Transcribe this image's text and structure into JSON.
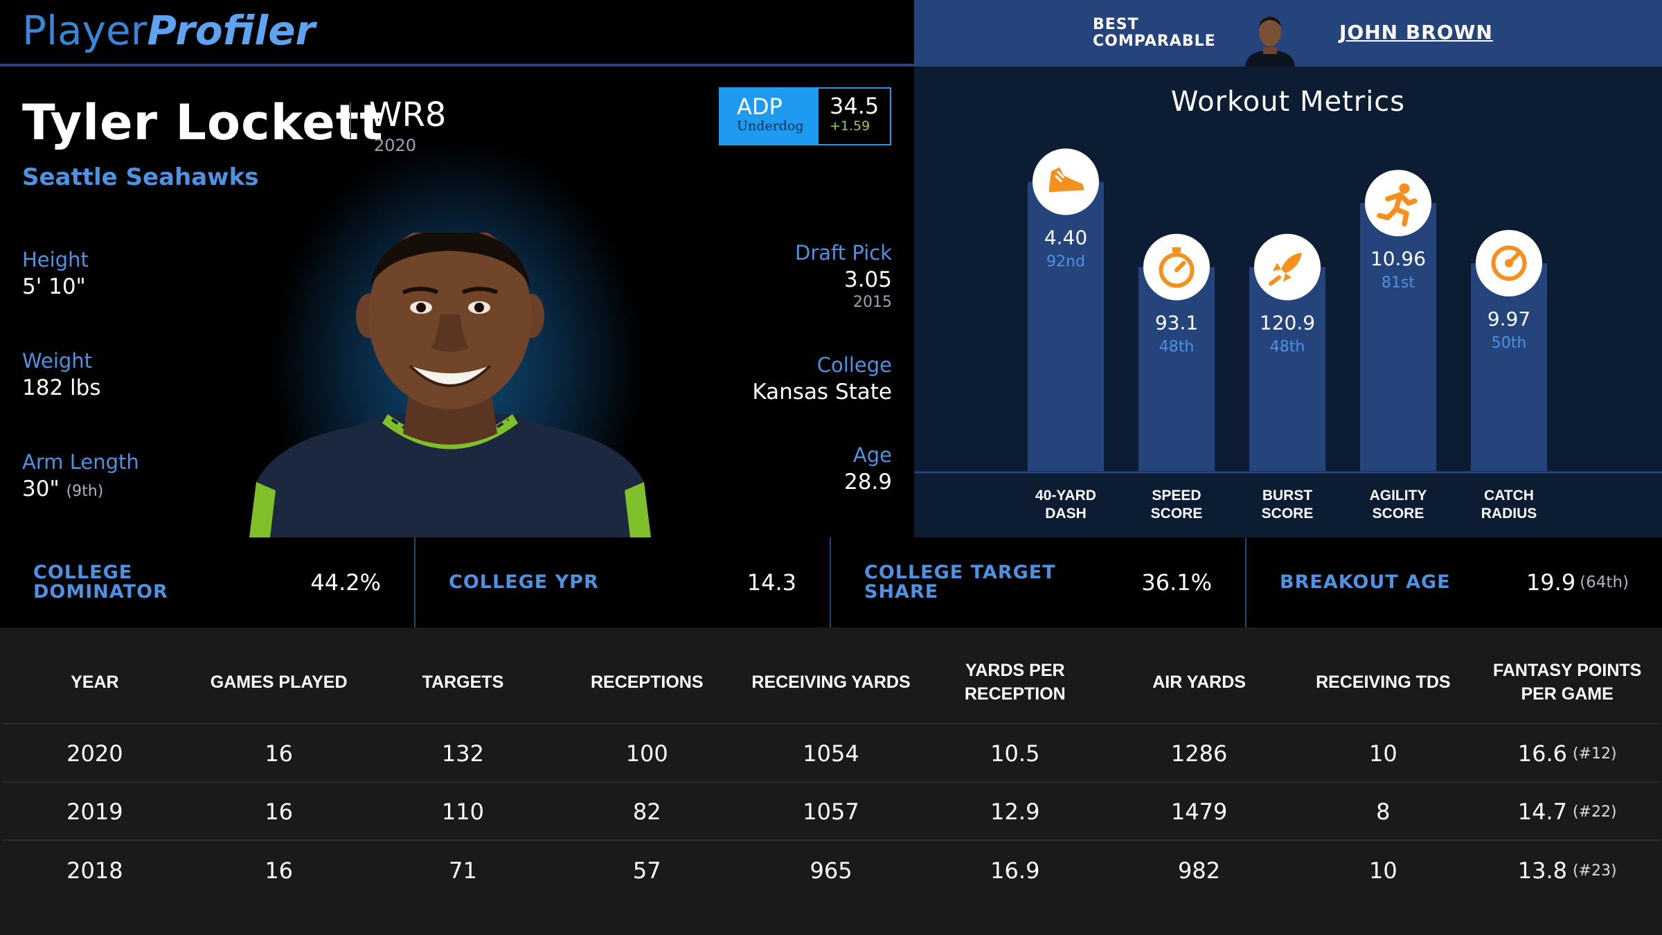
{
  "header": {
    "logo_part1": "Player",
    "logo_part2": "Profiler",
    "best_comparable_label_line1": "BEST",
    "best_comparable_label_line2": "COMPARABLE",
    "best_comparable_name": "JOHN BROWN"
  },
  "player": {
    "name": "Tyler Lockett",
    "position_rank": "WR8",
    "season": "2020",
    "team": "Seattle Seahawks",
    "height_label": "Height",
    "height": "5' 10\"",
    "weight_label": "Weight",
    "weight": "182 lbs",
    "arm_label": "Arm Length",
    "arm": "30\"",
    "arm_rank": "(9th)",
    "draft_label": "Draft Pick",
    "draft_pick": "3.05",
    "draft_year": "2015",
    "college_label": "College",
    "college": "Kansas State",
    "age_label": "Age",
    "age": "28.9"
  },
  "adp": {
    "label": "ADP",
    "site": "Underdog",
    "value": "34.5",
    "change": "+1.59"
  },
  "workout": {
    "title": "Workout Metrics",
    "colors": {
      "bar": "#25447c",
      "icon_bg": "#ffffff",
      "icon": "#f5901e",
      "value": "#ffffff",
      "pct": "#4e92e2"
    },
    "metrics": [
      {
        "label_line1": "40-YARD",
        "label_line2": "DASH",
        "value": "4.40",
        "percentile": "92nd",
        "pct_value": 92,
        "icon": "shoe-icon"
      },
      {
        "label_line1": "SPEED",
        "label_line2": "SCORE",
        "value": "93.1",
        "percentile": "48th",
        "pct_value": 48,
        "icon": "stopwatch-icon"
      },
      {
        "label_line1": "BURST",
        "label_line2": "SCORE",
        "value": "120.9",
        "percentile": "48th",
        "pct_value": 48,
        "icon": "rocket-icon"
      },
      {
        "label_line1": "AGILITY",
        "label_line2": "SCORE",
        "value": "10.96",
        "percentile": "81st",
        "pct_value": 81,
        "icon": "runner-icon"
      },
      {
        "label_line1": "CATCH",
        "label_line2": "RADIUS",
        "value": "9.97",
        "percentile": "50th",
        "pct_value": 50,
        "icon": "target-icon"
      }
    ]
  },
  "college_metrics": [
    {
      "label": "COLLEGE DOMINATOR",
      "value": "44.2%",
      "sub": ""
    },
    {
      "label": "COLLEGE YPR",
      "value": "14.3",
      "sub": ""
    },
    {
      "label": "COLLEGE TARGET SHARE",
      "value": "36.1%",
      "sub": ""
    },
    {
      "label": "BREAKOUT AGE",
      "value": "19.9",
      "sub": "(64th)"
    }
  ],
  "stats_table": {
    "headers": [
      "YEAR",
      "GAMES PLAYED",
      "TARGETS",
      "RECEPTIONS",
      "RECEIVING YARDS",
      "YARDS PER RECEPTION",
      "AIR YARDS",
      "RECEIVING TDS",
      "FANTASY POINTS PER GAME"
    ],
    "rows": [
      {
        "year": "2020",
        "games": "16",
        "targets": "132",
        "receptions": "100",
        "rec_yards": "1054",
        "ypr": "10.5",
        "air_yards": "1286",
        "tds": "10",
        "fppg": "16.6",
        "fppg_rank": "(#12)"
      },
      {
        "year": "2019",
        "games": "16",
        "targets": "110",
        "receptions": "82",
        "rec_yards": "1057",
        "ypr": "12.9",
        "air_yards": "1479",
        "tds": "8",
        "fppg": "14.7",
        "fppg_rank": "(#22)"
      },
      {
        "year": "2018",
        "games": "16",
        "targets": "71",
        "receptions": "57",
        "rec_yards": "965",
        "ypr": "16.9",
        "air_yards": "982",
        "tds": "10",
        "fppg": "13.8",
        "fppg_rank": "(#23)"
      }
    ]
  }
}
